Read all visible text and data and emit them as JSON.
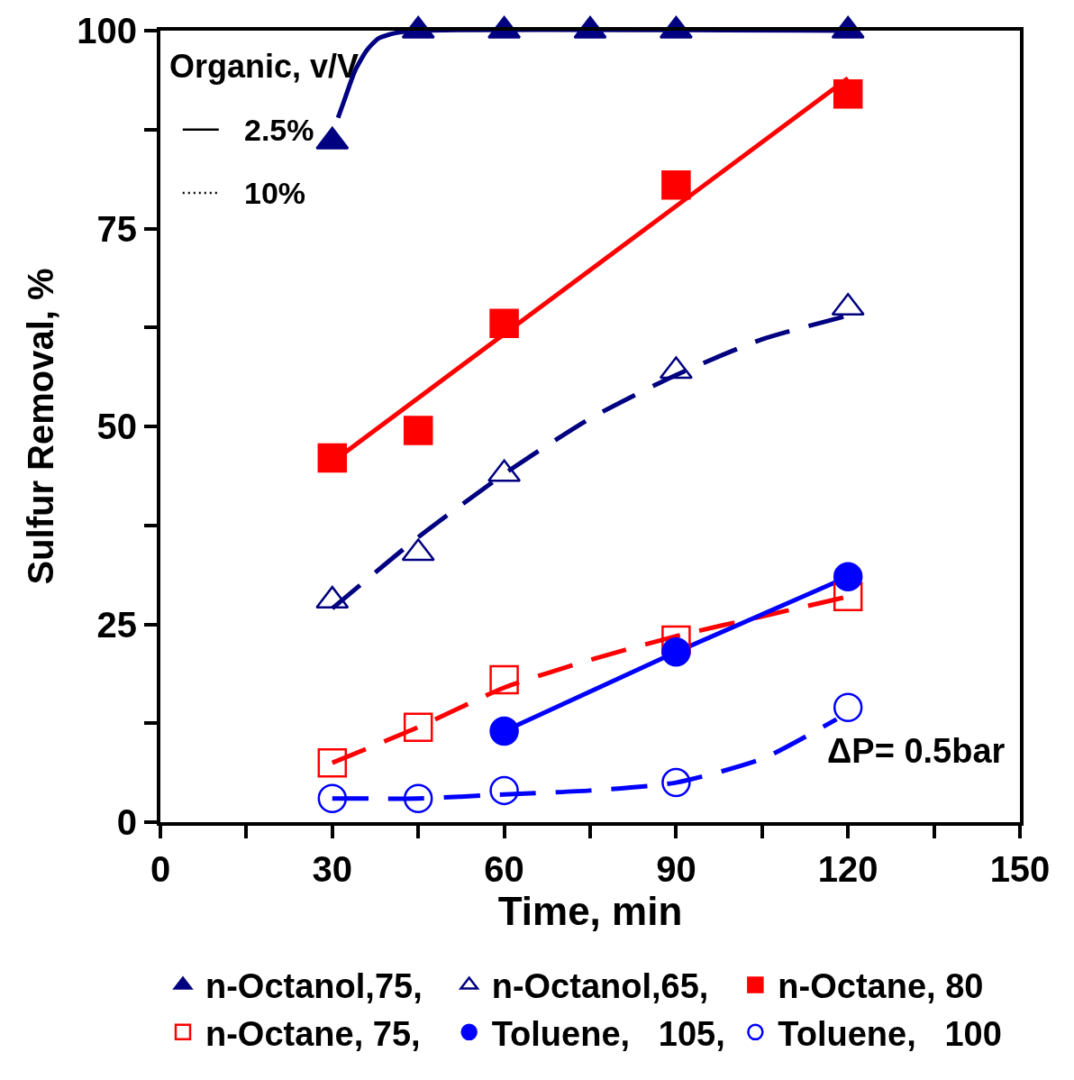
{
  "chart_data": {
    "type": "scatter",
    "xlabel": "Time, min",
    "ylabel": "Sulfur Removal, %",
    "xlim": [
      0,
      150
    ],
    "xticks": [
      0,
      {
        "value": 15,
        "label": null
      },
      30,
      {
        "value": 45,
        "label": null
      },
      60,
      {
        "value": 75,
        "label": null
      },
      90,
      {
        "value": 105,
        "label": null
      },
      120,
      {
        "value": 135,
        "label": null
      },
      150
    ],
    "ylim": [
      0,
      100
    ],
    "yticks": [
      0,
      {
        "value": 12.5,
        "label": null
      },
      25,
      {
        "value": 37.5,
        "label": null
      },
      50,
      {
        "value": 62.5,
        "label": null
      },
      75,
      {
        "value": 87.5,
        "label": null
      },
      100
    ],
    "grid": false,
    "legend": "bottom",
    "annotations": [
      "Organic, v/V",
      "2.5%",
      "10%",
      "ΔP= 0.5bar"
    ],
    "series": [
      {
        "name": "n-Octanol,75,",
        "color": "#000080",
        "marker": "triangle",
        "x": [
          30,
          45,
          60,
          75,
          90,
          120
        ],
        "values": [
          86,
          100,
          100,
          100,
          100,
          100
        ]
      },
      {
        "name": "n-Octanol,65,",
        "color": "#000080",
        "marker": "triangle-open",
        "x": [
          30,
          45,
          60,
          90,
          120
        ],
        "values": [
          28,
          34,
          44,
          57,
          65
        ]
      },
      {
        "name": "n-Octane, 80",
        "color": "#ff0000",
        "marker": "square",
        "x": [
          30,
          45,
          60,
          90,
          120
        ],
        "values": [
          46,
          49.5,
          63,
          80.5,
          92
        ]
      },
      {
        "name": "n-Octane, 75,",
        "color": "#ff0000",
        "marker": "square-open",
        "x": [
          30,
          45,
          60,
          90,
          120
        ],
        "values": [
          7.5,
          12,
          18,
          23,
          28.5
        ]
      },
      {
        "name": "Toluene,   105,",
        "color": "#0000ff",
        "marker": "circle",
        "x": [
          60,
          90,
          120
        ],
        "values": [
          11.5,
          21.5,
          31
        ]
      },
      {
        "name": "Toluene,   100",
        "color": "#0000ff",
        "marker": "circle-open",
        "x": [
          30,
          45,
          60,
          90,
          120
        ],
        "values": [
          3,
          3,
          4,
          5,
          14.5
        ]
      },
      {
        "type": "line",
        "color": "#000080",
        "line_style": "solid",
        "marker": "none",
        "x": [
          31,
          32,
          34,
          36,
          38,
          41,
          45,
          120
        ],
        "values": [
          89,
          91,
          95,
          97.5,
          99,
          99.7,
          100,
          100
        ]
      },
      {
        "type": "line",
        "color": "#000080",
        "line_style": "dashed",
        "marker": "none",
        "x": [
          30,
          45,
          60,
          75,
          90,
          105,
          120
        ],
        "values": [
          27,
          36,
          44,
          51,
          56.5,
          61,
          64
        ]
      },
      {
        "type": "line",
        "color": "#ff0000",
        "line_style": "solid",
        "marker": "none",
        "x": [
          30,
          120
        ],
        "values": [
          45.5,
          94
        ]
      },
      {
        "type": "line",
        "color": "#ff0000",
        "line_style": "dashed",
        "marker": "none",
        "x": [
          30,
          45,
          60,
          75,
          90,
          105,
          120
        ],
        "values": [
          7.5,
          12,
          17,
          20.5,
          23.5,
          26,
          28.5
        ]
      },
      {
        "type": "line",
        "color": "#0000ff",
        "line_style": "solid",
        "marker": "none",
        "x": [
          60,
          90,
          120
        ],
        "values": [
          11.5,
          21.5,
          31
        ]
      },
      {
        "type": "line",
        "color": "#0000ff",
        "line_style": "dashed",
        "marker": "none",
        "x": [
          30,
          45,
          60,
          75,
          90,
          105,
          118
        ],
        "values": [
          3,
          3,
          3.5,
          4,
          5,
          8,
          13
        ]
      }
    ]
  }
}
